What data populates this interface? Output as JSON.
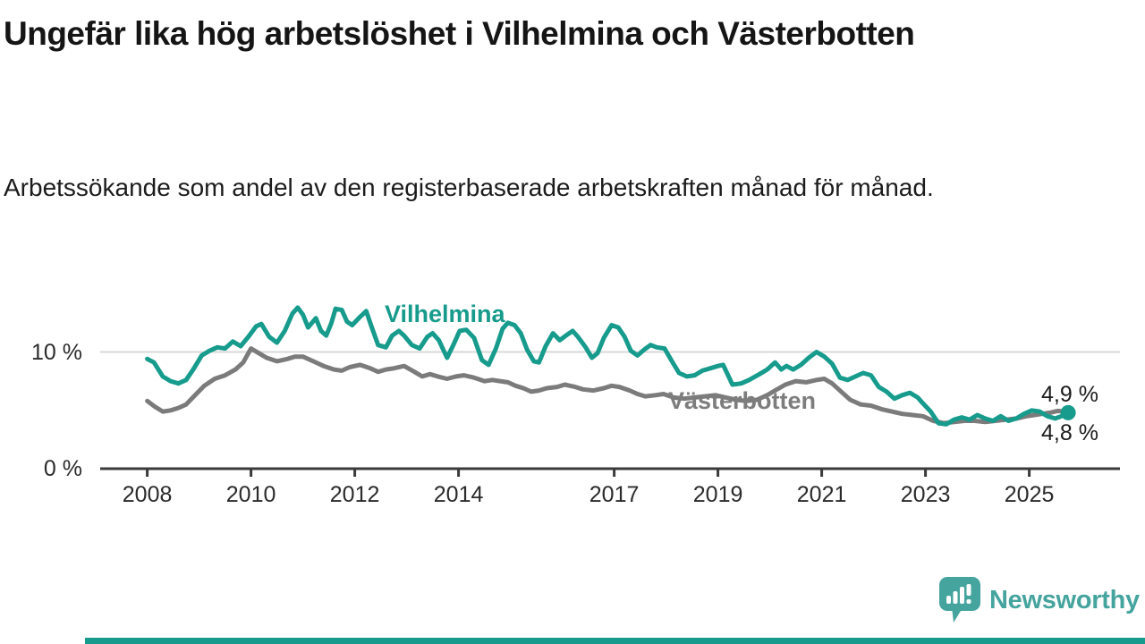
{
  "header": {
    "title": "Ungefär lika hög arbetslöshet i Vilhelmina och Västerbotten",
    "subtitle": "Arbetssökande som andel av den registerbaserade arbetskraften månad för månad."
  },
  "footer": {
    "brand": "Newsworthy"
  },
  "colors": {
    "accent_teal": "#169B8C",
    "series_gray": "#7B7B7B",
    "gray_label": "#7D7D7D",
    "gridline": "#D9D9D9",
    "axis": "#3A3A3A",
    "text": "#1C1C1C",
    "brand_teal": "#45A49E",
    "bottom_bar": "#169B8C"
  },
  "chart_data": {
    "type": "line",
    "title": "Ungefär lika hög arbetslöshet i Vilhelmina och Västerbotten",
    "subtitle": "Arbetssökande som andel av den registerbaserade arbetskraften månad för månad.",
    "unit": "%",
    "x_range": [
      2007.1,
      2026.75
    ],
    "y_range": [
      0,
      14.6
    ],
    "grid": "single horizontal gridline at 10 %",
    "legend_position": "inline labels on lines",
    "x_ticks": [
      {
        "year": 2008,
        "label": "2008"
      },
      {
        "year": 2010,
        "label": "2010"
      },
      {
        "year": 2012,
        "label": "2012"
      },
      {
        "year": 2014,
        "label": "2014"
      },
      {
        "year": 2017,
        "label": "2017"
      },
      {
        "year": 2019,
        "label": "2019"
      },
      {
        "year": 2021,
        "label": "2021"
      },
      {
        "year": 2023,
        "label": "2023"
      },
      {
        "year": 2025,
        "label": "2025"
      }
    ],
    "y_ticks": [
      {
        "value": 0,
        "label": "0 %"
      },
      {
        "value": 10,
        "label": "10 %"
      }
    ],
    "series": [
      {
        "name": "Vilhelmina",
        "color": "#169B8C",
        "end_label": "4,8 %",
        "end_dot": true,
        "points": [
          [
            2008.0,
            9.4
          ],
          [
            2008.13,
            9.1
          ],
          [
            2008.3,
            7.9
          ],
          [
            2008.45,
            7.5
          ],
          [
            2008.6,
            7.3
          ],
          [
            2008.75,
            7.6
          ],
          [
            2008.9,
            8.6
          ],
          [
            2009.05,
            9.7
          ],
          [
            2009.2,
            10.1
          ],
          [
            2009.35,
            10.4
          ],
          [
            2009.5,
            10.3
          ],
          [
            2009.65,
            10.9
          ],
          [
            2009.8,
            10.5
          ],
          [
            2009.95,
            11.3
          ],
          [
            2010.1,
            12.2
          ],
          [
            2010.2,
            12.4
          ],
          [
            2010.35,
            11.3
          ],
          [
            2010.5,
            10.8
          ],
          [
            2010.65,
            11.8
          ],
          [
            2010.8,
            13.3
          ],
          [
            2010.9,
            13.8
          ],
          [
            2011.0,
            13.2
          ],
          [
            2011.1,
            12.1
          ],
          [
            2011.25,
            12.9
          ],
          [
            2011.35,
            11.8
          ],
          [
            2011.45,
            11.4
          ],
          [
            2011.55,
            12.5
          ],
          [
            2011.63,
            13.7
          ],
          [
            2011.75,
            13.6
          ],
          [
            2011.85,
            12.6
          ],
          [
            2011.95,
            12.3
          ],
          [
            2012.1,
            13.0
          ],
          [
            2012.22,
            13.5
          ],
          [
            2012.32,
            12.2
          ],
          [
            2012.45,
            10.6
          ],
          [
            2012.6,
            10.4
          ],
          [
            2012.72,
            11.4
          ],
          [
            2012.85,
            11.8
          ],
          [
            2012.95,
            11.4
          ],
          [
            2013.1,
            10.6
          ],
          [
            2013.25,
            10.3
          ],
          [
            2013.4,
            11.3
          ],
          [
            2013.5,
            11.6
          ],
          [
            2013.62,
            11.0
          ],
          [
            2013.78,
            9.5
          ],
          [
            2013.9,
            10.6
          ],
          [
            2014.02,
            11.8
          ],
          [
            2014.15,
            11.9
          ],
          [
            2014.3,
            11.2
          ],
          [
            2014.45,
            9.3
          ],
          [
            2014.58,
            8.9
          ],
          [
            2014.72,
            10.3
          ],
          [
            2014.85,
            12.0
          ],
          [
            2014.95,
            12.5
          ],
          [
            2015.08,
            12.3
          ],
          [
            2015.2,
            11.6
          ],
          [
            2015.32,
            10.2
          ],
          [
            2015.45,
            9.2
          ],
          [
            2015.55,
            9.1
          ],
          [
            2015.68,
            10.5
          ],
          [
            2015.82,
            11.6
          ],
          [
            2015.95,
            11.0
          ],
          [
            2016.1,
            11.5
          ],
          [
            2016.2,
            11.8
          ],
          [
            2016.3,
            11.3
          ],
          [
            2016.45,
            10.4
          ],
          [
            2016.57,
            9.5
          ],
          [
            2016.68,
            9.9
          ],
          [
            2016.8,
            11.2
          ],
          [
            2016.95,
            12.3
          ],
          [
            2017.08,
            12.1
          ],
          [
            2017.2,
            11.3
          ],
          [
            2017.32,
            10.1
          ],
          [
            2017.45,
            9.7
          ],
          [
            2017.58,
            10.2
          ],
          [
            2017.7,
            10.6
          ],
          [
            2017.82,
            10.4
          ],
          [
            2017.97,
            10.3
          ],
          [
            2018.1,
            9.3
          ],
          [
            2018.25,
            8.2
          ],
          [
            2018.4,
            7.9
          ],
          [
            2018.55,
            8.0
          ],
          [
            2018.7,
            8.4
          ],
          [
            2018.85,
            8.6
          ],
          [
            2019.0,
            8.8
          ],
          [
            2019.1,
            8.9
          ],
          [
            2019.28,
            7.2
          ],
          [
            2019.45,
            7.3
          ],
          [
            2019.6,
            7.6
          ],
          [
            2019.8,
            8.1
          ],
          [
            2019.95,
            8.5
          ],
          [
            2020.1,
            9.1
          ],
          [
            2020.22,
            8.5
          ],
          [
            2020.32,
            8.8
          ],
          [
            2020.45,
            8.5
          ],
          [
            2020.6,
            8.9
          ],
          [
            2020.75,
            9.5
          ],
          [
            2020.9,
            10.0
          ],
          [
            2021.05,
            9.6
          ],
          [
            2021.2,
            9.0
          ],
          [
            2021.35,
            7.8
          ],
          [
            2021.5,
            7.6
          ],
          [
            2021.65,
            7.9
          ],
          [
            2021.8,
            8.2
          ],
          [
            2021.95,
            8.0
          ],
          [
            2022.1,
            7.0
          ],
          [
            2022.25,
            6.6
          ],
          [
            2022.4,
            6.0
          ],
          [
            2022.55,
            6.3
          ],
          [
            2022.7,
            6.5
          ],
          [
            2022.85,
            6.1
          ],
          [
            2022.95,
            5.6
          ],
          [
            2023.1,
            4.9
          ],
          [
            2023.25,
            3.9
          ],
          [
            2023.4,
            3.8
          ],
          [
            2023.55,
            4.2
          ],
          [
            2023.7,
            4.4
          ],
          [
            2023.85,
            4.2
          ],
          [
            2024.0,
            4.6
          ],
          [
            2024.15,
            4.3
          ],
          [
            2024.3,
            4.1
          ],
          [
            2024.45,
            4.5
          ],
          [
            2024.6,
            4.1
          ],
          [
            2024.75,
            4.3
          ],
          [
            2024.9,
            4.7
          ],
          [
            2025.05,
            5.0
          ],
          [
            2025.2,
            4.9
          ],
          [
            2025.35,
            4.5
          ],
          [
            2025.5,
            4.3
          ],
          [
            2025.62,
            4.5
          ],
          [
            2025.75,
            4.8
          ]
        ]
      },
      {
        "name": "Västerbotten",
        "color": "#7B7B7B",
        "end_label": "4,9 %",
        "end_dot": false,
        "points": [
          [
            2008.0,
            5.8
          ],
          [
            2008.15,
            5.3
          ],
          [
            2008.3,
            4.9
          ],
          [
            2008.45,
            5.0
          ],
          [
            2008.6,
            5.2
          ],
          [
            2008.75,
            5.5
          ],
          [
            2008.9,
            6.2
          ],
          [
            2009.1,
            7.1
          ],
          [
            2009.3,
            7.7
          ],
          [
            2009.5,
            8.0
          ],
          [
            2009.7,
            8.5
          ],
          [
            2009.85,
            9.1
          ],
          [
            2010.0,
            10.3
          ],
          [
            2010.15,
            9.9
          ],
          [
            2010.3,
            9.5
          ],
          [
            2010.5,
            9.2
          ],
          [
            2010.7,
            9.4
          ],
          [
            2010.85,
            9.6
          ],
          [
            2011.0,
            9.6
          ],
          [
            2011.2,
            9.2
          ],
          [
            2011.4,
            8.8
          ],
          [
            2011.6,
            8.5
          ],
          [
            2011.75,
            8.4
          ],
          [
            2011.9,
            8.7
          ],
          [
            2012.1,
            8.9
          ],
          [
            2012.3,
            8.6
          ],
          [
            2012.45,
            8.3
          ],
          [
            2012.6,
            8.5
          ],
          [
            2012.75,
            8.6
          ],
          [
            2012.95,
            8.8
          ],
          [
            2013.15,
            8.3
          ],
          [
            2013.3,
            7.9
          ],
          [
            2013.45,
            8.1
          ],
          [
            2013.6,
            7.9
          ],
          [
            2013.78,
            7.7
          ],
          [
            2013.95,
            7.9
          ],
          [
            2014.1,
            8.0
          ],
          [
            2014.3,
            7.8
          ],
          [
            2014.5,
            7.5
          ],
          [
            2014.65,
            7.6
          ],
          [
            2014.8,
            7.5
          ],
          [
            2014.95,
            7.4
          ],
          [
            2015.1,
            7.1
          ],
          [
            2015.25,
            6.9
          ],
          [
            2015.4,
            6.6
          ],
          [
            2015.55,
            6.7
          ],
          [
            2015.7,
            6.9
          ],
          [
            2015.9,
            7.0
          ],
          [
            2016.05,
            7.2
          ],
          [
            2016.25,
            7.0
          ],
          [
            2016.4,
            6.8
          ],
          [
            2016.6,
            6.7
          ],
          [
            2016.8,
            6.9
          ],
          [
            2016.95,
            7.1
          ],
          [
            2017.1,
            7.0
          ],
          [
            2017.3,
            6.7
          ],
          [
            2017.45,
            6.4
          ],
          [
            2017.6,
            6.2
          ],
          [
            2017.8,
            6.3
          ],
          [
            2017.95,
            6.4
          ],
          [
            2018.15,
            6.1
          ],
          [
            2018.35,
            6.0
          ],
          [
            2018.55,
            6.1
          ],
          [
            2018.75,
            6.2
          ],
          [
            2018.95,
            6.3
          ],
          [
            2019.15,
            6.1
          ],
          [
            2019.35,
            5.9
          ],
          [
            2019.55,
            5.8
          ],
          [
            2019.75,
            5.9
          ],
          [
            2019.95,
            6.3
          ],
          [
            2020.1,
            6.7
          ],
          [
            2020.3,
            7.2
          ],
          [
            2020.5,
            7.5
          ],
          [
            2020.7,
            7.4
          ],
          [
            2020.9,
            7.6
          ],
          [
            2021.05,
            7.7
          ],
          [
            2021.2,
            7.3
          ],
          [
            2021.4,
            6.5
          ],
          [
            2021.55,
            5.9
          ],
          [
            2021.75,
            5.5
          ],
          [
            2021.95,
            5.4
          ],
          [
            2022.15,
            5.1
          ],
          [
            2022.35,
            4.9
          ],
          [
            2022.55,
            4.7
          ],
          [
            2022.75,
            4.6
          ],
          [
            2022.95,
            4.5
          ],
          [
            2023.15,
            4.1
          ],
          [
            2023.35,
            3.9
          ],
          [
            2023.55,
            4.0
          ],
          [
            2023.75,
            4.1
          ],
          [
            2023.95,
            4.1
          ],
          [
            2024.15,
            4.0
          ],
          [
            2024.35,
            4.1
          ],
          [
            2024.55,
            4.2
          ],
          [
            2024.75,
            4.3
          ],
          [
            2024.95,
            4.5
          ],
          [
            2025.1,
            4.6
          ],
          [
            2025.25,
            4.7
          ],
          [
            2025.4,
            4.8
          ],
          [
            2025.55,
            4.95
          ],
          [
            2025.67,
            4.9
          ]
        ]
      }
    ]
  }
}
